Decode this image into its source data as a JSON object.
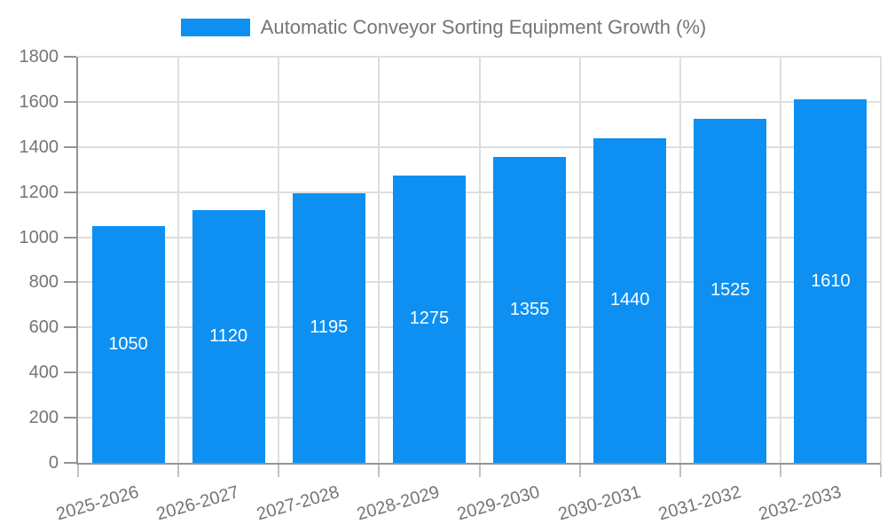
{
  "chart_data": {
    "type": "bar",
    "title": "Automatic Conveyor Sorting Equipment Growth (%)",
    "legend": {
      "label": "Automatic Conveyor Sorting Equipment Growth (%)",
      "position": "top-center"
    },
    "categories": [
      "2025-2026",
      "2026-2027",
      "2027-2028",
      "2028-2029",
      "2029-2030",
      "2030-2031",
      "2031-2032",
      "2032-2033"
    ],
    "series": [
      {
        "name": "Automatic Conveyor Sorting Equipment Growth (%)",
        "values": [
          1050,
          1120,
          1195,
          1275,
          1355,
          1440,
          1525,
          1610
        ]
      }
    ],
    "value_labels": [
      "1050",
      "1120",
      "1195",
      "1275",
      "1355",
      "1440",
      "1525",
      "1610"
    ],
    "xlabel": "",
    "ylabel": "",
    "ylim": [
      0,
      1800
    ],
    "yticks": [
      0,
      200,
      400,
      600,
      800,
      1000,
      1200,
      1400,
      1600,
      1800
    ],
    "grid": true,
    "colors": {
      "bar": "#0d90f2",
      "value_label": "#ffffff",
      "text": "#757575",
      "grid": "#dedede",
      "axis": "#949494",
      "tick": "#c2c2c2",
      "background": "#ffffff"
    }
  }
}
